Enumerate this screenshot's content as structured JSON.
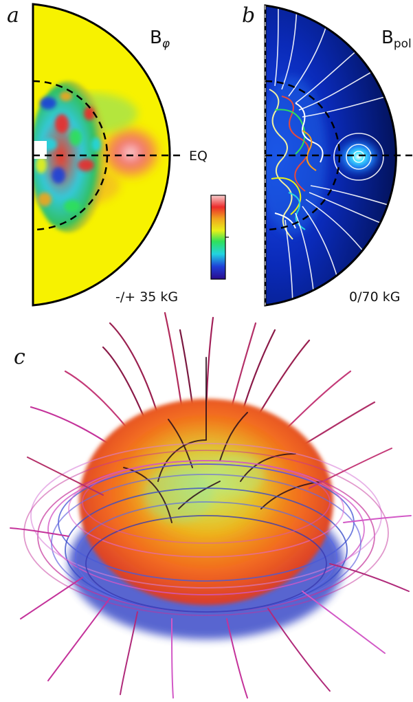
{
  "panels": {
    "a": {
      "letter": "a",
      "quantity": "B",
      "quantity_sub": "φ",
      "range": "-/+ 35 kG",
      "equator": "EQ"
    },
    "b": {
      "letter": "b",
      "quantity": "B",
      "quantity_sub": "pol",
      "range": "0/70 kG"
    },
    "c": {
      "letter": "c"
    }
  },
  "colors": {
    "field_yellow": "#f7f200",
    "field_red": "#ee2a2a",
    "field_blue_dark": "#000a3a",
    "field_blue": "#0a2fb8",
    "colorbar": [
      "#2a0b8c",
      "#1f3fd8",
      "#22d4e0",
      "#2fe05a",
      "#e8f019",
      "#f0a51f",
      "#ec2b2b",
      "#f7c7c7"
    ],
    "lines_pink": "#c4329a",
    "lines_magenta": "#d258c6",
    "lines_blue": "#4a5ad6",
    "lines_dark": "#2a0e1a"
  }
}
